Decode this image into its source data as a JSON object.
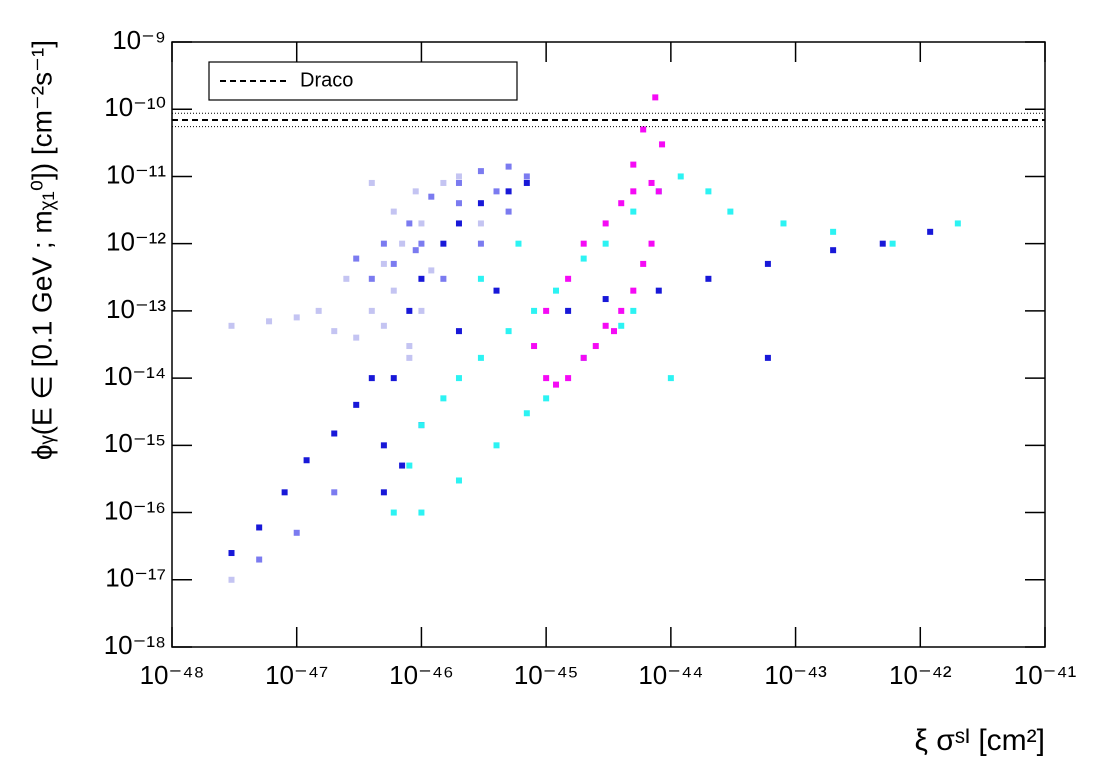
{
  "chart_data": {
    "type": "scatter",
    "log_x": true,
    "log_y": true,
    "x_label": "ξ σˢᴵ [cm²]",
    "y_label": "ϕᵧ(E ∈ [0.1 GeV ; mᵪ₁⁰]) [cm⁻²s⁻¹]",
    "xlim": [
      1e-48,
      1e-41
    ],
    "ylim": [
      1e-18,
      1e-09
    ],
    "xticks": [
      {
        "value": 1e-48,
        "label": "10⁻⁴⁸"
      },
      {
        "value": 1e-47,
        "label": "10⁻⁴⁷"
      },
      {
        "value": 1e-46,
        "label": "10⁻⁴⁶"
      },
      {
        "value": 1e-45,
        "label": "10⁻⁴⁵"
      },
      {
        "value": 1e-44,
        "label": "10⁻⁴⁴"
      },
      {
        "value": 1e-43,
        "label": "10⁻⁴³"
      },
      {
        "value": 1e-42,
        "label": "10⁻⁴²"
      },
      {
        "value": 1e-41,
        "label": "10⁻⁴¹"
      }
    ],
    "yticks": [
      {
        "value": 1e-18,
        "label": "10⁻¹⁸"
      },
      {
        "value": 1e-17,
        "label": "10⁻¹⁷"
      },
      {
        "value": 1e-16,
        "label": "10⁻¹⁶"
      },
      {
        "value": 1e-15,
        "label": "10⁻¹⁵"
      },
      {
        "value": 1e-14,
        "label": "10⁻¹⁴"
      },
      {
        "value": 1e-13,
        "label": "10⁻¹³"
      },
      {
        "value": 1e-12,
        "label": "10⁻¹²"
      },
      {
        "value": 1e-11,
        "label": "10⁻¹¹"
      },
      {
        "value": 1e-10,
        "label": "10⁻¹⁰"
      },
      {
        "value": 1e-09,
        "label": "10⁻⁹"
      }
    ],
    "reference_line": {
      "name": "Draco",
      "value": 6.9e-11,
      "low": 5.5e-11,
      "high": 8.7e-11,
      "color": "#000000"
    },
    "series": [
      {
        "color": "#c4c4f2",
        "x": [
          3e-48,
          6e-48,
          1e-47,
          1.5e-47,
          2e-47,
          3e-47,
          5e-47,
          8e-47,
          4e-47,
          6e-47,
          1e-46,
          5e-47,
          7e-47,
          1e-46,
          6e-47,
          9e-47,
          1.5e-46,
          2e-46,
          1.2e-46,
          3e-46,
          3e-48,
          4e-47,
          2.5e-47,
          8e-47
        ],
        "values": [
          6e-14,
          7e-14,
          8e-14,
          1e-13,
          5e-14,
          4e-14,
          6e-14,
          3e-14,
          1e-13,
          2e-13,
          1e-13,
          5e-13,
          1e-12,
          2e-12,
          3e-12,
          6e-12,
          8e-12,
          1e-11,
          4e-13,
          2e-12,
          1e-17,
          8e-12,
          3e-13,
          2e-14
        ]
      },
      {
        "color": "#7b7bf0",
        "x": [
          5e-48,
          1e-47,
          2e-47,
          3e-47,
          5e-47,
          8e-47,
          1.2e-46,
          2e-46,
          3e-46,
          5e-46,
          7e-46,
          4e-47,
          6e-47,
          1e-46,
          2e-46,
          4e-46,
          1.5e-46,
          9e-47,
          3e-46,
          5e-46
        ],
        "values": [
          2e-17,
          5e-17,
          2e-16,
          6e-13,
          1e-12,
          2e-12,
          5e-12,
          8e-12,
          1.2e-11,
          1.4e-11,
          1e-11,
          3e-13,
          5e-13,
          1e-12,
          4e-12,
          6e-12,
          3e-13,
          8e-13,
          1e-12,
          3e-12
        ]
      },
      {
        "color": "#1818d8",
        "x": [
          3e-48,
          5e-48,
          8e-48,
          1.2e-47,
          2e-47,
          3e-47,
          4e-47,
          5e-47,
          5e-47,
          6e-47,
          8e-47,
          1e-46,
          1.5e-46,
          2e-46,
          3e-46,
          5e-46,
          7e-46,
          4e-46,
          2e-46,
          1e-46,
          7e-47,
          1.5e-45,
          3e-45,
          8e-45,
          2e-44,
          6e-44,
          2e-43,
          5e-43,
          1.2e-42,
          6e-44
        ],
        "values": [
          2.5e-17,
          6e-17,
          2e-16,
          6e-16,
          1.5e-15,
          4e-15,
          1e-14,
          2e-16,
          1e-15,
          1e-14,
          1e-13,
          3e-13,
          1e-12,
          2e-12,
          4e-12,
          6e-12,
          8e-12,
          2e-13,
          5e-14,
          2e-15,
          5e-16,
          1e-13,
          1.5e-13,
          2e-13,
          3e-13,
          5e-13,
          8e-13,
          1e-12,
          1.5e-12,
          2e-14
        ]
      },
      {
        "color": "#2cf3f3",
        "x": [
          6e-47,
          8e-47,
          1e-46,
          1.5e-46,
          2e-46,
          3e-46,
          5e-46,
          8e-46,
          1.2e-45,
          2e-45,
          3e-45,
          5e-45,
          8e-45,
          1.2e-44,
          2e-44,
          1e-46,
          2e-46,
          4e-46,
          7e-46,
          1e-45,
          2e-45,
          4e-45,
          6e-46,
          3e-46,
          3e-44,
          8e-44,
          2e-43,
          6e-43,
          2e-42,
          1e-44,
          5e-45
        ],
        "values": [
          1e-16,
          5e-16,
          2e-15,
          5e-15,
          1e-14,
          2e-14,
          5e-14,
          1e-13,
          2e-13,
          6e-13,
          1e-12,
          3e-12,
          6e-12,
          1e-11,
          6e-12,
          1e-16,
          3e-16,
          1e-15,
          3e-15,
          5e-15,
          2e-14,
          6e-14,
          1e-12,
          3e-13,
          3e-12,
          2e-12,
          1.5e-12,
          1e-12,
          2e-12,
          1e-14,
          1e-13
        ]
      },
      {
        "color": "#f50af5",
        "x": [
          8e-46,
          1e-45,
          1.2e-45,
          1.5e-45,
          2e-45,
          2.5e-45,
          3e-45,
          4e-45,
          5e-45,
          6e-45,
          7e-45,
          8e-45,
          1e-45,
          1.5e-45,
          2e-45,
          3e-45,
          4e-45,
          5e-45,
          7e-45,
          6e-45,
          7.5e-45,
          8.5e-45,
          5e-45,
          3.5e-45
        ],
        "values": [
          3e-14,
          1e-14,
          8e-15,
          1e-14,
          2e-14,
          3e-14,
          6e-14,
          1e-13,
          2e-13,
          5e-13,
          1e-12,
          6e-12,
          1e-13,
          3e-13,
          1e-12,
          2e-12,
          4e-12,
          6e-12,
          8e-12,
          5e-11,
          1.5e-10,
          3e-11,
          1.5e-11,
          5e-14
        ]
      }
    ]
  }
}
